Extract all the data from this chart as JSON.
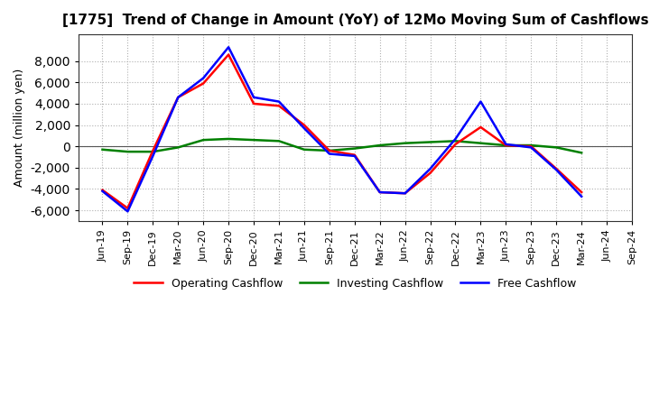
{
  "title": "[1775]  Trend of Change in Amount (YoY) of 12Mo Moving Sum of Cashflows",
  "ylabel": "Amount (million yen)",
  "labels": [
    "Jun-19",
    "Sep-19",
    "Dec-19",
    "Mar-20",
    "Jun-20",
    "Sep-20",
    "Dec-20",
    "Mar-21",
    "Jun-21",
    "Sep-21",
    "Dec-21",
    "Mar-22",
    "Jun-22",
    "Sep-22",
    "Dec-22",
    "Mar-23",
    "Jun-23",
    "Sep-23",
    "Dec-23",
    "Mar-24",
    "Jun-24",
    "Sep-24"
  ],
  "operating_cashflow": [
    -4100,
    -5800,
    -400,
    4600,
    5900,
    8600,
    4000,
    3800,
    2000,
    -400,
    -800,
    -4300,
    -4400,
    -2500,
    200,
    1800,
    100,
    0,
    -2100,
    -4300,
    null,
    null
  ],
  "investing_cashflow": [
    -300,
    -500,
    -500,
    -100,
    600,
    700,
    600,
    500,
    -300,
    -400,
    -200,
    100,
    300,
    400,
    500,
    300,
    100,
    100,
    -100,
    -600,
    null,
    null
  ],
  "free_cashflow": [
    -4200,
    -6100,
    -900,
    4600,
    6400,
    9300,
    4600,
    4200,
    1700,
    -700,
    -900,
    -4300,
    -4400,
    -2100,
    700,
    4200,
    200,
    -100,
    -2200,
    -4700,
    null,
    null
  ],
  "operating_color": "#ff0000",
  "investing_color": "#008000",
  "free_color": "#0000ff",
  "ylim": [
    -7000,
    10500
  ],
  "yticks": [
    -6000,
    -4000,
    -2000,
    0,
    2000,
    4000,
    6000,
    8000
  ],
  "bg_color": "#ffffff",
  "grid_color": "#b0b0b0",
  "line_width": 1.8,
  "title_fontsize": 11,
  "ylabel_fontsize": 9,
  "tick_fontsize": 8
}
